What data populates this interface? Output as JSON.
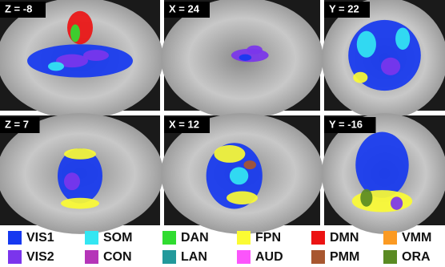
{
  "panels": [
    {
      "label": "Z = -8"
    },
    {
      "label": "X = 24"
    },
    {
      "label": "Y = 22"
    },
    {
      "label": "Z = 7"
    },
    {
      "label": "X = 12"
    },
    {
      "label": "Y = -16"
    }
  ],
  "legend": [
    {
      "name": "VIS1",
      "color": "#1638f0"
    },
    {
      "name": "SOM",
      "color": "#33e6f2"
    },
    {
      "name": "DAN",
      "color": "#30dc30"
    },
    {
      "name": "FPN",
      "color": "#fbfb33"
    },
    {
      "name": "DMN",
      "color": "#ec1313"
    },
    {
      "name": "VMM",
      "color": "#fb9a22"
    },
    {
      "name": "VIS2",
      "color": "#7b35ec"
    },
    {
      "name": "CON",
      "color": "#b535b8"
    },
    {
      "name": "LAN",
      "color": "#22999b"
    },
    {
      "name": "AUD",
      "color": "#fb55fb"
    },
    {
      "name": "PMM",
      "color": "#a8562f"
    },
    {
      "name": "ORA",
      "color": "#5a8a22"
    }
  ]
}
